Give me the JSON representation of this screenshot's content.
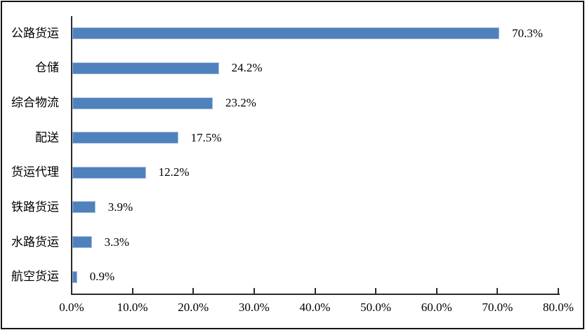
{
  "chart_data": {
    "type": "bar",
    "orientation": "horizontal",
    "title": "",
    "xlabel": "",
    "ylabel": "",
    "categories": [
      "公路货运",
      "仓储",
      "综合物流",
      "配送",
      "货运代理",
      "铁路货运",
      "水路货运",
      "航空货运"
    ],
    "values": [
      70.3,
      24.2,
      23.2,
      17.5,
      12.2,
      3.9,
      3.3,
      0.9
    ],
    "value_labels": [
      "70.3%",
      "24.2%",
      "23.2%",
      "17.5%",
      "12.2%",
      "3.9%",
      "3.3%",
      "0.9%"
    ],
    "x_ticks": [
      0,
      10,
      20,
      30,
      40,
      50,
      60,
      70,
      80
    ],
    "x_tick_labels": [
      "0.0%",
      "10.0%",
      "20.0%",
      "30.0%",
      "40.0%",
      "50.0%",
      "60.0%",
      "70.0%",
      "80.0%"
    ],
    "xlim": [
      0,
      80
    ],
    "grid": false,
    "legend": false,
    "bar_color": "#4f81bd",
    "bar_edge_color": "#a9c2e1",
    "axis_color": "#2b2b2b",
    "text_color": "#000000",
    "background_color": "#ffffff",
    "border_color": "#141414"
  }
}
